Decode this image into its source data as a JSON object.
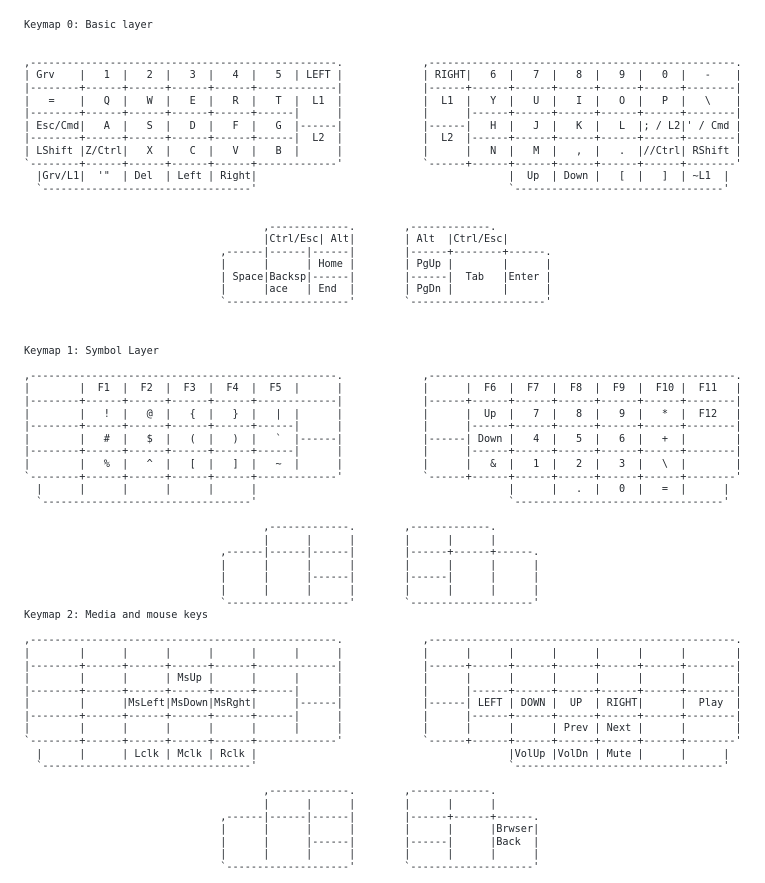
{
  "page": {
    "background_color": "#ffffff",
    "text_color": "#24292f"
  },
  "sections": [
    {
      "title": "Keymap 0: Basic layer",
      "art": [
        "",
        "",
        ",--------------------------------------------------.             ,--------------------------------------------------.",
        "| Grv    |   1  |   2  |   3  |   4  |   5  | LEFT |             | RIGHT|   6  |   7  |   8  |   9  |   0  |   -    |",
        "|--------+------+------+------+------+-------------|             |------+------+------+------+------+------+--------|",
        "|   =    |   Q  |   W  |   E  |   R  |   T  |  L1  |             |  L1  |   Y  |   U  |   I  |   O  |   P  |   \\    |",
        "|--------+------+------+------+------+------|      |             |      |------+------+------+------+------+--------|",
        "| Esc/Cmd|   A  |   S  |   D  |   F  |   G  |------|             |------|   H  |   J  |   K  |   L  |; / L2|' / Cmd |",
        "|--------+------+------+------+------+------|  L2  |             |  L2  |------+------+------+------+------+--------|",
        "| LShift |Z/Ctrl|   X  |   C  |   V  |   B  |      |             |      |   N  |   M  |   ,  |   .  |//Ctrl| RShift |",
        "`--------+------+------+------+------+-------------'             `------+------+------+------+------+------+--------'",
        "  |Grv/L1|  '\"  | Del  | Left | Right|                                         |  Up  | Down |   [  |   ]  | ~L1  |",
        "  `----------------------------------'                                         `----------------------------------'",
        "",
        "",
        "                                       ,-------------.        ,-------------.",
        "                                       |Ctrl/Esc| Alt|        | Alt  |Ctrl/Esc|",
        "                                ,------|------|------|        |------+--------+------.",
        "                                |      |      | Home |        | PgUp |        |      |",
        "                                | Space|Backsp|------|        |------|  Tab   |Enter |",
        "                                |      |ace   | End  |        | PgDn |        |      |",
        "                                `--------------------'        `----------------------'"
      ]
    },
    {
      "title": "Keymap 1: Symbol Layer",
      "art": [
        "",
        ",--------------------------------------------------.             ,--------------------------------------------------.",
        "|        |  F1  |  F2  |  F3  |  F4  |  F5  |      |             |      |  F6  |  F7  |  F8  |  F9  |  F10 |  F11   |",
        "|--------+------+------+------+------+-------------|             |------+------+------+------+------+------+--------|",
        "|        |   !  |   @  |   {  |   }  |   |  |      |             |      |  Up  |   7  |   8  |   9  |   *  |  F12   |",
        "|--------+------+------+------+------+------|      |             |      |------+------+------+------+------+--------|",
        "|        |   #  |   $  |   (  |   )  |   `  |------|             |------| Down |   4  |   5  |   6  |   +  |        |",
        "|--------+------+------+------+------+------|      |             |      |------+------+------+------+------+--------|",
        "|        |   %  |   ^  |   [  |   ]  |   ~  |      |             |      |   &  |   1  |   2  |   3  |   \\  |        |",
        "`--------+------+------+------+------+-------------'             `------+------+------+------+------+------+--------'",
        "  |      |      |      |      |      |                                         |      |   .  |   0  |   =  |      |",
        "  `----------------------------------'                                         `----------------------------------'",
        "",
        "                                       ,-------------.        ,-------------.",
        "                                       |      |      |        |      |      |",
        "                                ,------|------|------|        |------+------+------.",
        "                                |      |      |      |        |      |      |      |",
        "                                |      |      |------|        |------|      |      |",
        "                                |      |      |      |        |      |      |      |",
        "                                `--------------------'        `--------------------'"
      ]
    },
    {
      "title": "Keymap 2: Media and mouse keys",
      "art": [
        "",
        ",--------------------------------------------------.             ,--------------------------------------------------.",
        "|        |      |      |      |      |      |      |             |      |      |      |      |      |      |        |",
        "|--------+------+------+------+------+-------------|             |------+------+------+------+------+------+--------|",
        "|        |      |      | MsUp |      |      |      |             |      |      |      |      |      |      |        |",
        "|--------+------+------+------+------+------|      |             |      |------+------+------+------+------+--------|",
        "|        |      |MsLeft|MsDown|MsRght|      |------|             |------| LEFT | DOWN |  UP  | RIGHT|      |  Play  |",
        "|--------+------+------+------+------+------|      |             |      |------+------+------+------+------+--------|",
        "|        |      |      |      |      |      |      |             |      |      |      | Prev | Next |      |        |",
        "`--------+------+------+------+------+-------------'             `------+------+------+------+------+------+--------'",
        "  |      |      | Lclk | Mclk | Rclk |                                         |VolUp |VolDn | Mute |      |      |",
        "  `----------------------------------'                                         `----------------------------------'",
        "",
        "                                       ,-------------.        ,-------------.",
        "                                       |      |      |        |      |      |",
        "                                ,------|------|------|        |------+------+------.",
        "                                |      |      |      |        |      |      |Brwser|",
        "                                |      |      |------|        |------|      |Back  |",
        "                                |      |      |      |        |      |      |      |",
        "                                `--------------------'        `--------------------'"
      ]
    }
  ]
}
